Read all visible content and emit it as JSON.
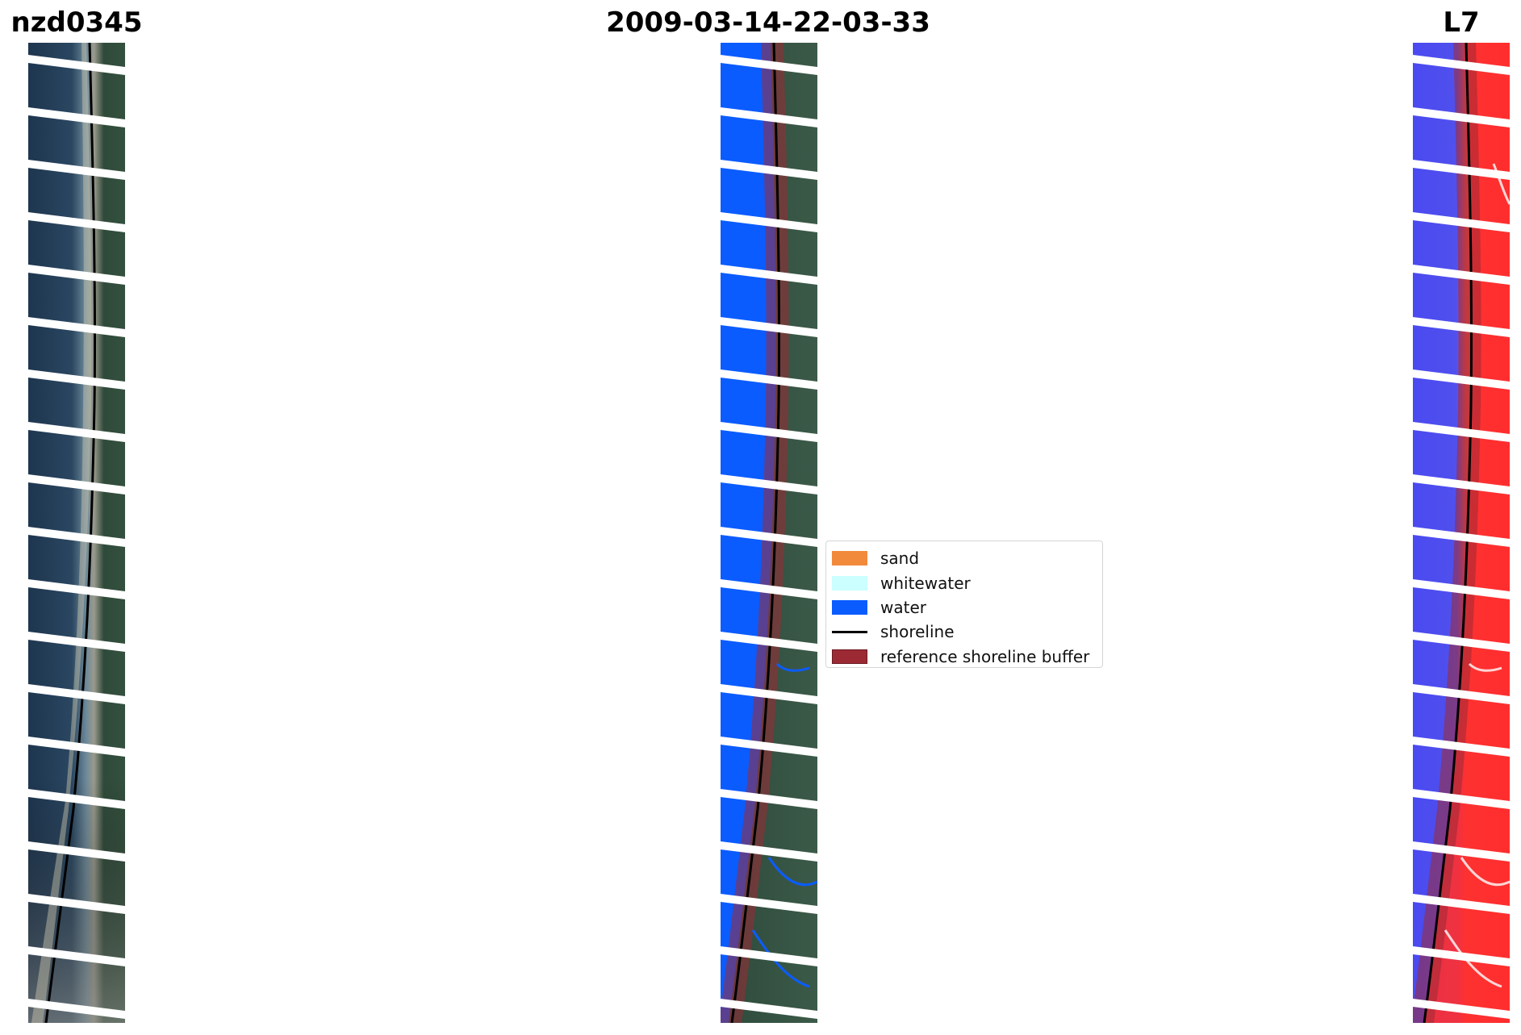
{
  "titles": {
    "left": "nzd0345",
    "center": "2009-03-14-22-03-33",
    "right": "L7"
  },
  "panels": {
    "left": "rgb-image",
    "center": "classified-image",
    "right": "water-index-image"
  },
  "colors": {
    "sand": "#f28a3c",
    "whitewater": "#ccffff",
    "water": "#0b5cff",
    "shoreline": "#000000",
    "buffer": "#9c2a34"
  },
  "legend": {
    "items": [
      {
        "label": "sand",
        "kind": "swatch",
        "color": "#f28a3c"
      },
      {
        "label": "whitewater",
        "kind": "swatch",
        "color": "#ccffff"
      },
      {
        "label": "water",
        "kind": "swatch",
        "color": "#0b5cff"
      },
      {
        "label": "shoreline",
        "kind": "line",
        "color": "#000000"
      },
      {
        "label": "reference shoreline buffer",
        "kind": "swatch",
        "color": "#9c2a34"
      }
    ]
  }
}
